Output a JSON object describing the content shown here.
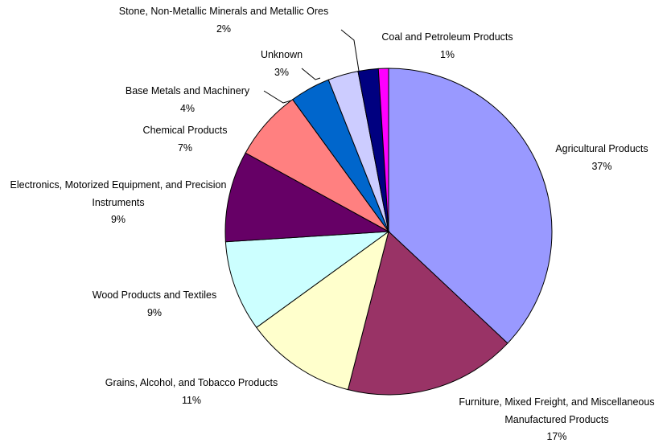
{
  "chart_data": {
    "type": "pie",
    "categories": [
      "Agricultural Products",
      "Furniture, Mixed Freight, and Miscellaneous Manufactured Products",
      "Grains, Alcohol, and Tobacco Products",
      "Wood Products and Textiles",
      "Electronics, Motorized Equipment, and Precision Instruments",
      "Chemical Products",
      "Base Metals and Machinery",
      "Unknown",
      "Stone, Non-Metallic Minerals and Metallic Ores",
      "Coal and Petroleum Products"
    ],
    "values": [
      37,
      17,
      11,
      9,
      9,
      7,
      4,
      3,
      2,
      1
    ],
    "value_labels": [
      "37%",
      "17%",
      "11%",
      "9%",
      "9%",
      "7%",
      "4%",
      "3%",
      "2%",
      "1%"
    ],
    "colors": [
      "#9999ff",
      "#993366",
      "#ffffcc",
      "#ccffff",
      "#660066",
      "#ff8080",
      "#0066cc",
      "#ccccff",
      "#000080",
      "#ff00ff"
    ]
  }
}
